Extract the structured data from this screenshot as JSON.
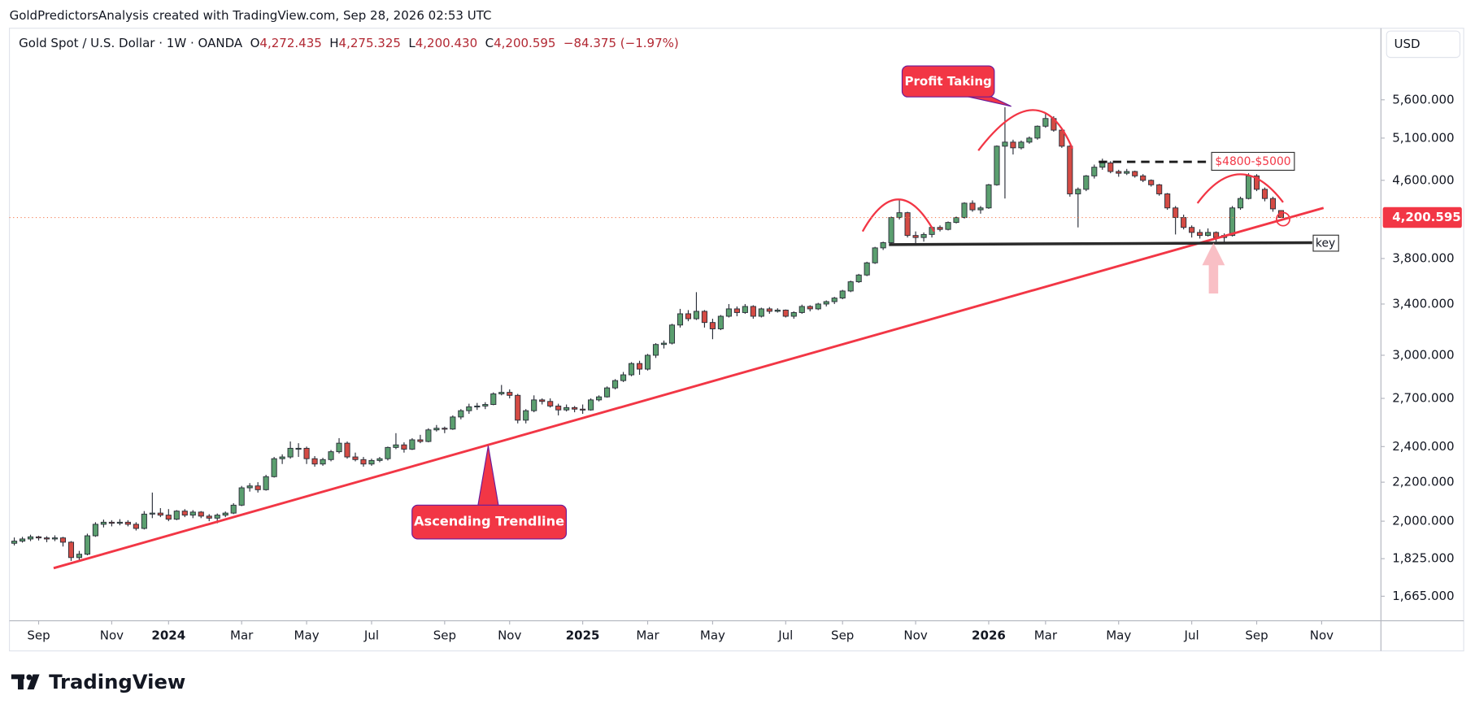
{
  "chart_data": {
    "type": "candlestick",
    "watermark": "GoldPredictorsAnalysis created with TradingView.com, Sep 28, 2026 02:53 UTC",
    "symbol": "Gold Spot / U.S. Dollar · 1W · OANDA",
    "ohlc_labels": [
      [
        "O",
        "4,272.435"
      ],
      [
        "H",
        "4,275.325"
      ],
      [
        "L",
        "4,200.430"
      ],
      [
        "C",
        "4,200.595"
      ]
    ],
    "change": "−84.375 (−1.97%)",
    "currency": "USD",
    "brand": "TradingView",
    "annotations": {
      "profit_taking": "Profit Taking",
      "trendline": "Ascending Trendline",
      "target": "$4800-$5000",
      "key": "key"
    },
    "log_scale": true,
    "grid": false,
    "up_color": "#5b9f6f",
    "down_color": "#d44b44",
    "ylim": [
      1568,
      6670
    ],
    "yticks": [
      {
        "value": 1665,
        "label": "1,665.000"
      },
      {
        "value": 1825,
        "label": "1,825.000"
      },
      {
        "value": 2000,
        "label": "2,000.000"
      },
      {
        "value": 2200,
        "label": "2,200.000"
      },
      {
        "value": 2400,
        "label": "2,400.000"
      },
      {
        "value": 2700,
        "label": "2,700.000"
      },
      {
        "value": 3000,
        "label": "3,000.000"
      },
      {
        "value": 3400,
        "label": "3,400.000"
      },
      {
        "value": 3800,
        "label": "3,800.000"
      },
      {
        "value": 4600,
        "label": "4,600.000"
      },
      {
        "value": 5100,
        "label": "5,100.000"
      },
      {
        "value": 5600,
        "label": "5,600.000"
      }
    ],
    "last_price": {
      "value": 4200.595,
      "label": "4,200.595"
    },
    "xlim": [
      -0.6,
      168.3
    ],
    "xticks": [
      {
        "value": 3,
        "label": "Sep"
      },
      {
        "value": 12,
        "label": "Nov"
      },
      {
        "value": 19,
        "label": "2024"
      },
      {
        "value": 28,
        "label": "Mar"
      },
      {
        "value": 36,
        "label": "May"
      },
      {
        "value": 44,
        "label": "Jul"
      },
      {
        "value": 53,
        "label": "Sep"
      },
      {
        "value": 61,
        "label": "Nov"
      },
      {
        "value": 70,
        "label": "2025"
      },
      {
        "value": 78,
        "label": "Mar"
      },
      {
        "value": 86,
        "label": "May"
      },
      {
        "value": 95,
        "label": "Jul"
      },
      {
        "value": 102,
        "label": "Sep"
      },
      {
        "value": 111,
        "label": "Nov"
      },
      {
        "value": 120,
        "label": "2026"
      },
      {
        "value": 127,
        "label": "Mar"
      },
      {
        "value": 136,
        "label": "May"
      },
      {
        "value": 145,
        "label": "Jul"
      },
      {
        "value": 153,
        "label": "Sep"
      },
      {
        "value": 161,
        "label": "Nov"
      }
    ],
    "candles": [
      [
        1895,
        1922,
        1885,
        1905
      ],
      [
        1905,
        1925,
        1898,
        1915
      ],
      [
        1915,
        1935,
        1905,
        1925
      ],
      [
        1925,
        1930,
        1908,
        1920
      ],
      [
        1920,
        1928,
        1900,
        1915
      ],
      [
        1915,
        1932,
        1905,
        1920
      ],
      [
        1920,
        1925,
        1880,
        1900
      ],
      [
        1900,
        1905,
        1815,
        1830
      ],
      [
        1830,
        1860,
        1820,
        1845
      ],
      [
        1845,
        1940,
        1840,
        1930
      ],
      [
        1930,
        1995,
        1925,
        1985
      ],
      [
        1985,
        2008,
        1970,
        1995
      ],
      [
        1995,
        2005,
        1975,
        1990
      ],
      [
        1990,
        2010,
        1980,
        1995
      ],
      [
        1995,
        2005,
        1975,
        1985
      ],
      [
        1985,
        1995,
        1955,
        1965
      ],
      [
        1965,
        2050,
        1960,
        2035
      ],
      [
        2035,
        2145,
        2015,
        2040
      ],
      [
        2040,
        2065,
        2020,
        2030
      ],
      [
        2030,
        2060,
        2000,
        2010
      ],
      [
        2010,
        2055,
        2005,
        2050
      ],
      [
        2050,
        2060,
        2020,
        2030
      ],
      [
        2030,
        2055,
        2015,
        2045
      ],
      [
        2045,
        2050,
        2015,
        2025
      ],
      [
        2025,
        2035,
        2000,
        2015
      ],
      [
        2015,
        2038,
        1990,
        2030
      ],
      [
        2030,
        2048,
        2020,
        2040
      ],
      [
        2040,
        2090,
        2035,
        2080
      ],
      [
        2080,
        2180,
        2075,
        2170
      ],
      [
        2170,
        2195,
        2150,
        2180
      ],
      [
        2180,
        2200,
        2145,
        2160
      ],
      [
        2160,
        2240,
        2155,
        2230
      ],
      [
        2230,
        2340,
        2225,
        2330
      ],
      [
        2330,
        2355,
        2300,
        2340
      ],
      [
        2340,
        2430,
        2330,
        2390
      ],
      [
        2390,
        2420,
        2340,
        2390
      ],
      [
        2390,
        2400,
        2300,
        2330
      ],
      [
        2330,
        2345,
        2285,
        2300
      ],
      [
        2300,
        2335,
        2290,
        2325
      ],
      [
        2325,
        2380,
        2315,
        2370
      ],
      [
        2370,
        2450,
        2360,
        2420
      ],
      [
        2420,
        2430,
        2330,
        2340
      ],
      [
        2340,
        2365,
        2315,
        2325
      ],
      [
        2325,
        2340,
        2285,
        2300
      ],
      [
        2300,
        2330,
        2290,
        2320
      ],
      [
        2320,
        2340,
        2310,
        2330
      ],
      [
        2330,
        2400,
        2320,
        2395
      ],
      [
        2395,
        2480,
        2385,
        2410
      ],
      [
        2410,
        2425,
        2365,
        2385
      ],
      [
        2385,
        2450,
        2380,
        2440
      ],
      [
        2440,
        2470,
        2420,
        2430
      ],
      [
        2430,
        2510,
        2425,
        2500
      ],
      [
        2500,
        2530,
        2490,
        2510
      ],
      [
        2510,
        2520,
        2480,
        2505
      ],
      [
        2505,
        2590,
        2500,
        2580
      ],
      [
        2580,
        2630,
        2565,
        2620
      ],
      [
        2620,
        2665,
        2600,
        2645
      ],
      [
        2645,
        2670,
        2625,
        2650
      ],
      [
        2650,
        2675,
        2630,
        2660
      ],
      [
        2660,
        2740,
        2655,
        2730
      ],
      [
        2730,
        2790,
        2720,
        2740
      ],
      [
        2740,
        2760,
        2700,
        2720
      ],
      [
        2720,
        2730,
        2540,
        2560
      ],
      [
        2560,
        2630,
        2540,
        2620
      ],
      [
        2620,
        2720,
        2610,
        2690
      ],
      [
        2690,
        2700,
        2660,
        2680
      ],
      [
        2680,
        2700,
        2640,
        2650
      ],
      [
        2650,
        2665,
        2590,
        2625
      ],
      [
        2625,
        2660,
        2615,
        2640
      ],
      [
        2640,
        2650,
        2610,
        2630
      ],
      [
        2630,
        2660,
        2600,
        2625
      ],
      [
        2625,
        2700,
        2620,
        2690
      ],
      [
        2690,
        2720,
        2680,
        2710
      ],
      [
        2710,
        2780,
        2705,
        2770
      ],
      [
        2770,
        2830,
        2760,
        2820
      ],
      [
        2820,
        2880,
        2810,
        2860
      ],
      [
        2860,
        2950,
        2850,
        2940
      ],
      [
        2940,
        2960,
        2860,
        2900
      ],
      [
        2900,
        3010,
        2890,
        3000
      ],
      [
        3000,
        3090,
        2980,
        3080
      ],
      [
        3080,
        3110,
        3050,
        3090
      ],
      [
        3090,
        3240,
        3080,
        3230
      ],
      [
        3230,
        3360,
        3210,
        3320
      ],
      [
        3320,
        3350,
        3260,
        3280
      ],
      [
        3280,
        3500,
        3270,
        3340
      ],
      [
        3340,
        3350,
        3210,
        3250
      ],
      [
        3250,
        3280,
        3120,
        3200
      ],
      [
        3200,
        3310,
        3190,
        3300
      ],
      [
        3300,
        3400,
        3290,
        3360
      ],
      [
        3360,
        3380,
        3300,
        3330
      ],
      [
        3330,
        3400,
        3320,
        3380
      ],
      [
        3380,
        3390,
        3280,
        3300
      ],
      [
        3300,
        3370,
        3290,
        3360
      ],
      [
        3360,
        3375,
        3320,
        3340
      ],
      [
        3340,
        3365,
        3330,
        3350
      ],
      [
        3350,
        3355,
        3290,
        3300
      ],
      [
        3300,
        3340,
        3280,
        3330
      ],
      [
        3330,
        3395,
        3320,
        3380
      ],
      [
        3380,
        3390,
        3340,
        3360
      ],
      [
        3360,
        3410,
        3350,
        3400
      ],
      [
        3400,
        3430,
        3380,
        3420
      ],
      [
        3420,
        3460,
        3400,
        3450
      ],
      [
        3450,
        3520,
        3440,
        3510
      ],
      [
        3510,
        3600,
        3500,
        3590
      ],
      [
        3590,
        3660,
        3580,
        3650
      ],
      [
        3650,
        3770,
        3640,
        3760
      ],
      [
        3760,
        3910,
        3750,
        3900
      ],
      [
        3900,
        3960,
        3880,
        3950
      ],
      [
        3950,
        4210,
        3940,
        4200
      ],
      [
        4200,
        4380,
        4180,
        4250
      ],
      [
        4250,
        4260,
        4000,
        4020
      ],
      [
        4020,
        4060,
        3920,
        4000
      ],
      [
        4000,
        4050,
        3960,
        4030
      ],
      [
        4030,
        4110,
        4000,
        4100
      ],
      [
        4100,
        4120,
        4060,
        4080
      ],
      [
        4080,
        4160,
        4070,
        4150
      ],
      [
        4150,
        4210,
        4140,
        4200
      ],
      [
        4200,
        4360,
        4190,
        4350
      ],
      [
        4350,
        4380,
        4260,
        4280
      ],
      [
        4280,
        4320,
        4240,
        4300
      ],
      [
        4300,
        4560,
        4290,
        4550
      ],
      [
        4550,
        5010,
        4540,
        5000
      ],
      [
        5000,
        5500,
        4400,
        5050
      ],
      [
        5050,
        5080,
        4900,
        4980
      ],
      [
        4980,
        5070,
        4960,
        5050
      ],
      [
        5050,
        5120,
        5030,
        5100
      ],
      [
        5100,
        5260,
        5080,
        5250
      ],
      [
        5250,
        5420,
        5230,
        5350
      ],
      [
        5350,
        5380,
        5180,
        5200
      ],
      [
        5200,
        5220,
        4980,
        5000
      ],
      [
        5000,
        5010,
        4420,
        4450
      ],
      [
        4450,
        4520,
        4100,
        4500
      ],
      [
        4500,
        4660,
        4480,
        4650
      ],
      [
        4650,
        4780,
        4620,
        4750
      ],
      [
        4750,
        4850,
        4720,
        4800
      ],
      [
        4800,
        4820,
        4680,
        4700
      ],
      [
        4700,
        4720,
        4640,
        4680
      ],
      [
        4680,
        4730,
        4660,
        4700
      ],
      [
        4700,
        4710,
        4630,
        4650
      ],
      [
        4650,
        4670,
        4580,
        4600
      ],
      [
        4600,
        4610,
        4530,
        4550
      ],
      [
        4550,
        4560,
        4430,
        4450
      ],
      [
        4450,
        4460,
        4280,
        4300
      ],
      [
        4300,
        4320,
        4030,
        4200
      ],
      [
        4200,
        4230,
        4080,
        4100
      ],
      [
        4100,
        4120,
        4000,
        4050
      ],
      [
        4050,
        4080,
        3990,
        4020
      ],
      [
        4020,
        4090,
        4010,
        4050
      ],
      [
        4050,
        4060,
        3960,
        4000
      ],
      [
        4000,
        4040,
        3950,
        4020
      ],
      [
        4020,
        4320,
        4010,
        4300
      ],
      [
        4300,
        4420,
        4280,
        4400
      ],
      [
        4400,
        4680,
        4390,
        4650
      ],
      [
        4650,
        4670,
        4480,
        4500
      ],
      [
        4500,
        4520,
        4370,
        4400
      ],
      [
        4400,
        4420,
        4260,
        4290
      ],
      [
        4272.435,
        4275.325,
        4200.43,
        4200.595
      ]
    ]
  }
}
